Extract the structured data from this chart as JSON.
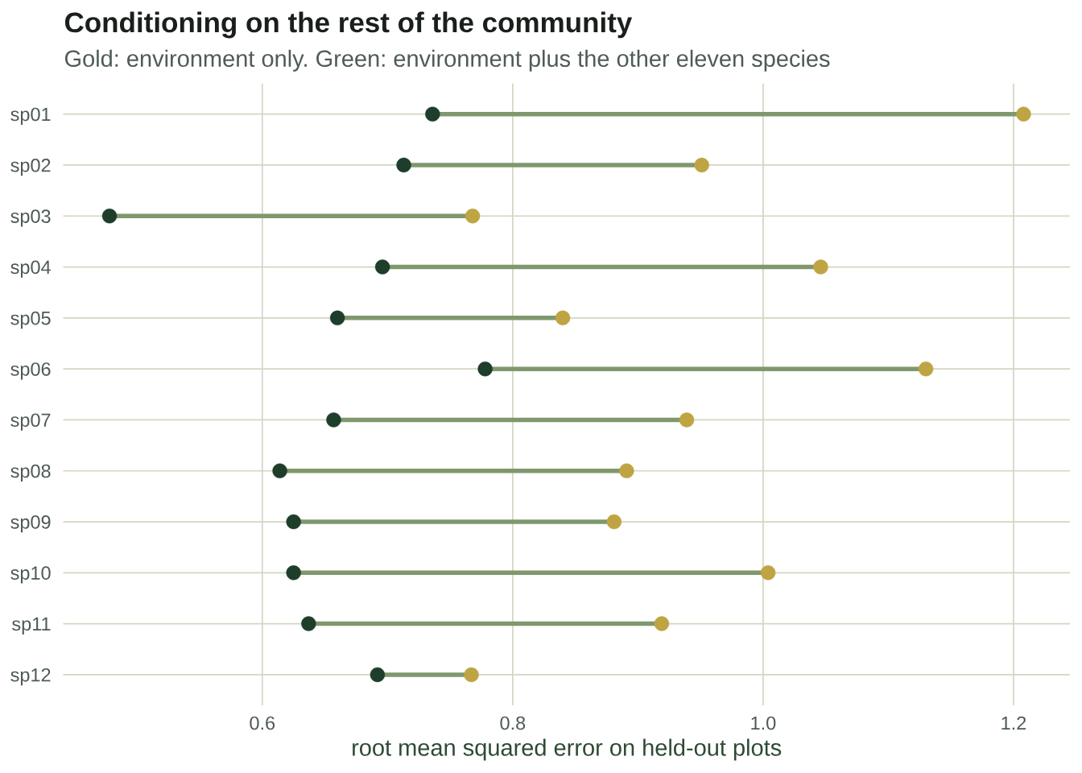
{
  "chart_data": {
    "type": "scatter",
    "orientation": "horizontal",
    "title": "Conditioning on the rest of the community",
    "subtitle": "Gold: environment only. Green: environment plus the other eleven species",
    "xlabel": "root mean squared error on held-out plots",
    "categories": [
      "sp01",
      "sp02",
      "sp03",
      "sp04",
      "sp05",
      "sp06",
      "sp07",
      "sp08",
      "sp09",
      "sp10",
      "sp11",
      "sp12"
    ],
    "series": [
      {
        "color": "#1e3d2a",
        "values": [
          0.736,
          0.713,
          0.478,
          0.696,
          0.66,
          0.778,
          0.657,
          0.614,
          0.625,
          0.625,
          0.637,
          0.692
        ]
      },
      {
        "color": "#bfa443",
        "values": [
          1.208,
          0.951,
          0.768,
          1.046,
          0.84,
          1.13,
          0.939,
          0.891,
          0.881,
          1.004,
          0.919,
          0.767
        ]
      }
    ],
    "xlim": [
      0.441,
      1.245
    ],
    "xticks": [
      0.6,
      0.8,
      {
        "value": 1,
        "label": "1.0"
      },
      1.2
    ],
    "grid": true,
    "marker": "circle"
  }
}
